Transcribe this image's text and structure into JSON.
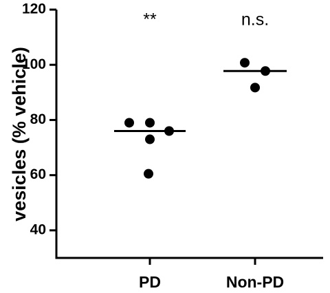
{
  "chart_data": {
    "type": "dot",
    "ylabel": "vesicles (% vehicle)",
    "categories": [
      "PD",
      "Non-PD"
    ],
    "values": [
      [
        79,
        79,
        73,
        76,
        60.5
      ],
      [
        100.75,
        97.75,
        91.75
      ]
    ],
    "lines": [
      76,
      97.75
    ],
    "annotations": [
      "**",
      "n.s."
    ],
    "color": "#000000",
    "ylim": [
      30,
      120
    ],
    "yticks": [
      40,
      60,
      80,
      100,
      120
    ]
  }
}
